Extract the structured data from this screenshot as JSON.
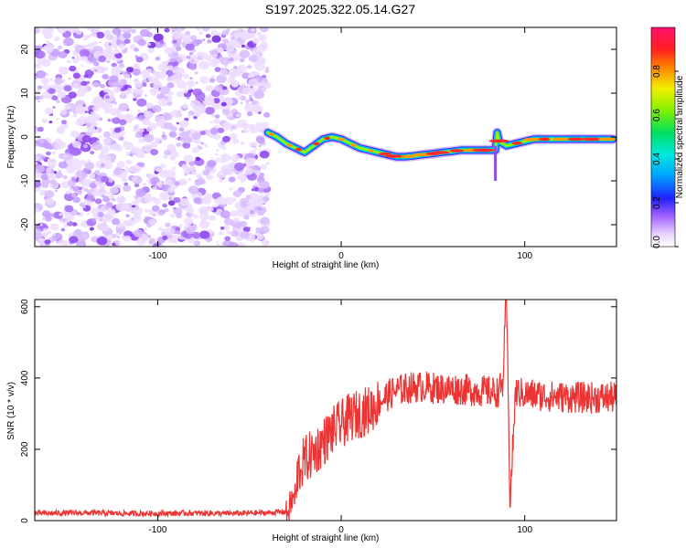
{
  "title": "S197.2025.322.05.14.G27",
  "chart_data": [
    {
      "type": "heatmap",
      "panel": "top",
      "xlabel": "Height of straight line (km)",
      "ylabel": "Frequency (Hz)",
      "xlim": [
        -167,
        150
      ],
      "ylim": [
        -25,
        25
      ],
      "x_ticks": [
        -100,
        0,
        100
      ],
      "y_ticks": [
        -20,
        -10,
        0,
        10,
        20
      ],
      "noise_region_x": [
        -167,
        -40
      ],
      "colorbar": {
        "label": "Normalized spectral amplitude",
        "range": [
          0,
          1
        ],
        "ticks": [
          0.0,
          0.2,
          0.4,
          0.6,
          0.8
        ],
        "tick_labels": [
          "0.0",
          "0.2",
          "0.4",
          "0.6",
          "0.8"
        ]
      },
      "ridge_line": {
        "x": [
          -40,
          -35,
          -30,
          -25,
          -20,
          -15,
          -10,
          -5,
          0,
          5,
          10,
          15,
          20,
          25,
          30,
          35,
          40,
          45,
          50,
          55,
          60,
          65,
          70,
          75,
          80,
          84,
          85,
          86,
          90,
          95,
          100,
          105,
          110,
          115,
          120,
          125,
          130,
          135,
          140,
          148
        ],
        "y": [
          1,
          0,
          -1.5,
          -2.5,
          -3.5,
          -2,
          -0.5,
          0,
          -0.5,
          -1.5,
          -2.5,
          -3,
          -3.5,
          -4,
          -4.5,
          -4.5,
          -4.3,
          -4,
          -3.8,
          -3.5,
          -3.3,
          -3,
          -3,
          -3,
          -3,
          -3,
          1,
          -1,
          -2,
          -1.5,
          -1,
          -0.5,
          -0.5,
          -0.5,
          -0.5,
          -0.5,
          -0.5,
          -0.5,
          -0.5,
          -0.5
        ]
      }
    },
    {
      "type": "line",
      "panel": "bottom",
      "xlabel": "Height of straight line (km)",
      "ylabel": "SNR (10 * v/v)",
      "xlim": [
        -167,
        150
      ],
      "ylim": [
        0,
        620
      ],
      "x_ticks": [
        -100,
        0,
        100
      ],
      "y_ticks": [
        0,
        200,
        400,
        600
      ],
      "series": [
        {
          "name": "SNR",
          "color": "#ee3333",
          "x": [
            -167,
            -140,
            -120,
            -100,
            -80,
            -60,
            -40,
            -30,
            -27,
            -25,
            -20,
            -15,
            -10,
            -5,
            0,
            5,
            10,
            15,
            20,
            25,
            30,
            35,
            40,
            45,
            50,
            55,
            60,
            65,
            70,
            75,
            80,
            85,
            88,
            90,
            92,
            95,
            100,
            105,
            110,
            115,
            120,
            125,
            130,
            135,
            140,
            150
          ],
          "values": [
            20,
            22,
            20,
            20,
            21,
            20,
            22,
            25,
            90,
            120,
            170,
            190,
            220,
            250,
            270,
            290,
            300,
            310,
            330,
            350,
            365,
            370,
            375,
            375,
            372,
            370,
            370,
            368,
            366,
            364,
            362,
            360,
            380,
            640,
            50,
            360,
            355,
            352,
            350,
            348,
            347,
            346,
            345,
            345,
            345,
            345
          ]
        }
      ]
    }
  ]
}
